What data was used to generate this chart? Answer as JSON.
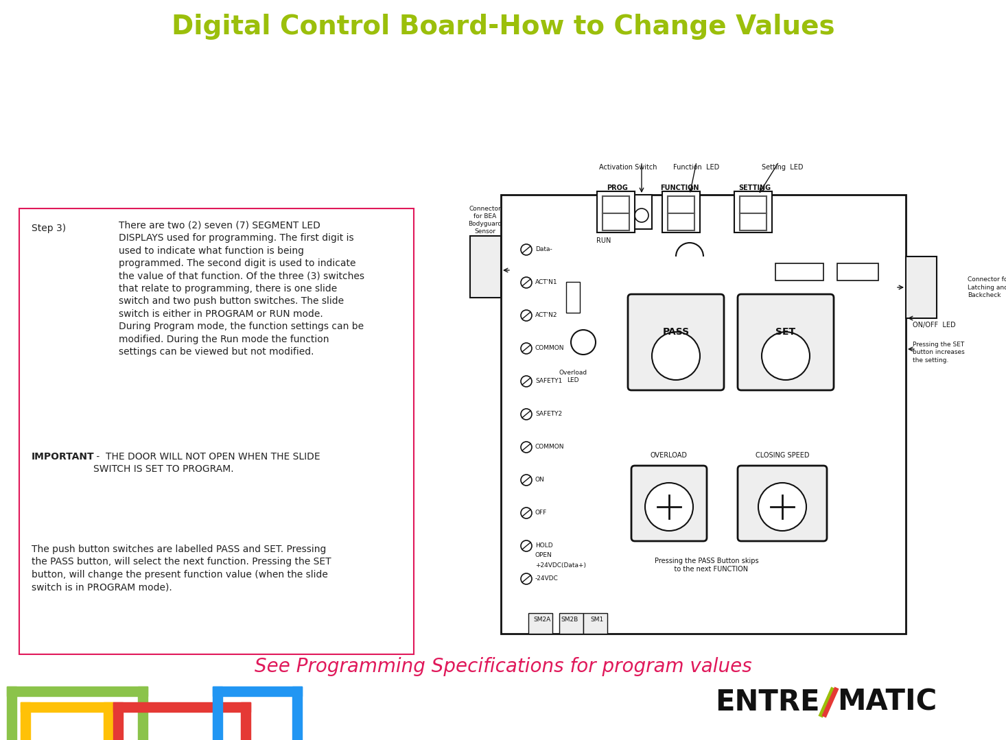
{
  "title": "Digital Control Board-How to Change Values",
  "title_color": "#9BBF0B",
  "title_fontsize": 28,
  "bg_color": "#FFFFFF",
  "box_border_color": "#E0185A",
  "step3_label": "Step 3)",
  "step3_text": "There are two (2) seven (7) SEGMENT LED\nDISPLAYS used for programming. The first digit is\nused to indicate what function is being\nprogrammed. The second digit is used to indicate\nthe value of that function. Of the three (3) switches\nthat relate to programming, there is one slide\nswitch and two push button switches. The slide\nswitch is either in PROGRAM or RUN mode.\nDuring Program mode, the function settings can be\nmodified. During the Run mode the function\nsettings can be viewed but not modified.",
  "important_bold": "IMPORTANT",
  "important_rest": " -  THE DOOR WILL NOT OPEN WHEN THE SLIDE\nSWITCH IS SET TO PROGRAM.",
  "pass_text": "The push button switches are labelled PASS and SET. Pressing\nthe PASS button, will select the next function. Pressing the SET\nbutton, will change the present function value (when the slide\nswitch is in PROGRAM mode).",
  "subtitle": "See Programming Specifications for program values",
  "subtitle_color": "#E0185A",
  "subtitle_fontsize": 20,
  "footer_colors": [
    "#8BC34A",
    "#FFC107",
    "#E53935",
    "#2196F3"
  ],
  "terminal_labels": [
    "Data-",
    "ACT'N1",
    "ACT'N2",
    "COMMON",
    "SAFETY1",
    "SAFETY2",
    "COMMON",
    "ON",
    "OFF",
    "HOLD\nOPEN\n+24VDC(Data+)",
    "-24VDC"
  ]
}
